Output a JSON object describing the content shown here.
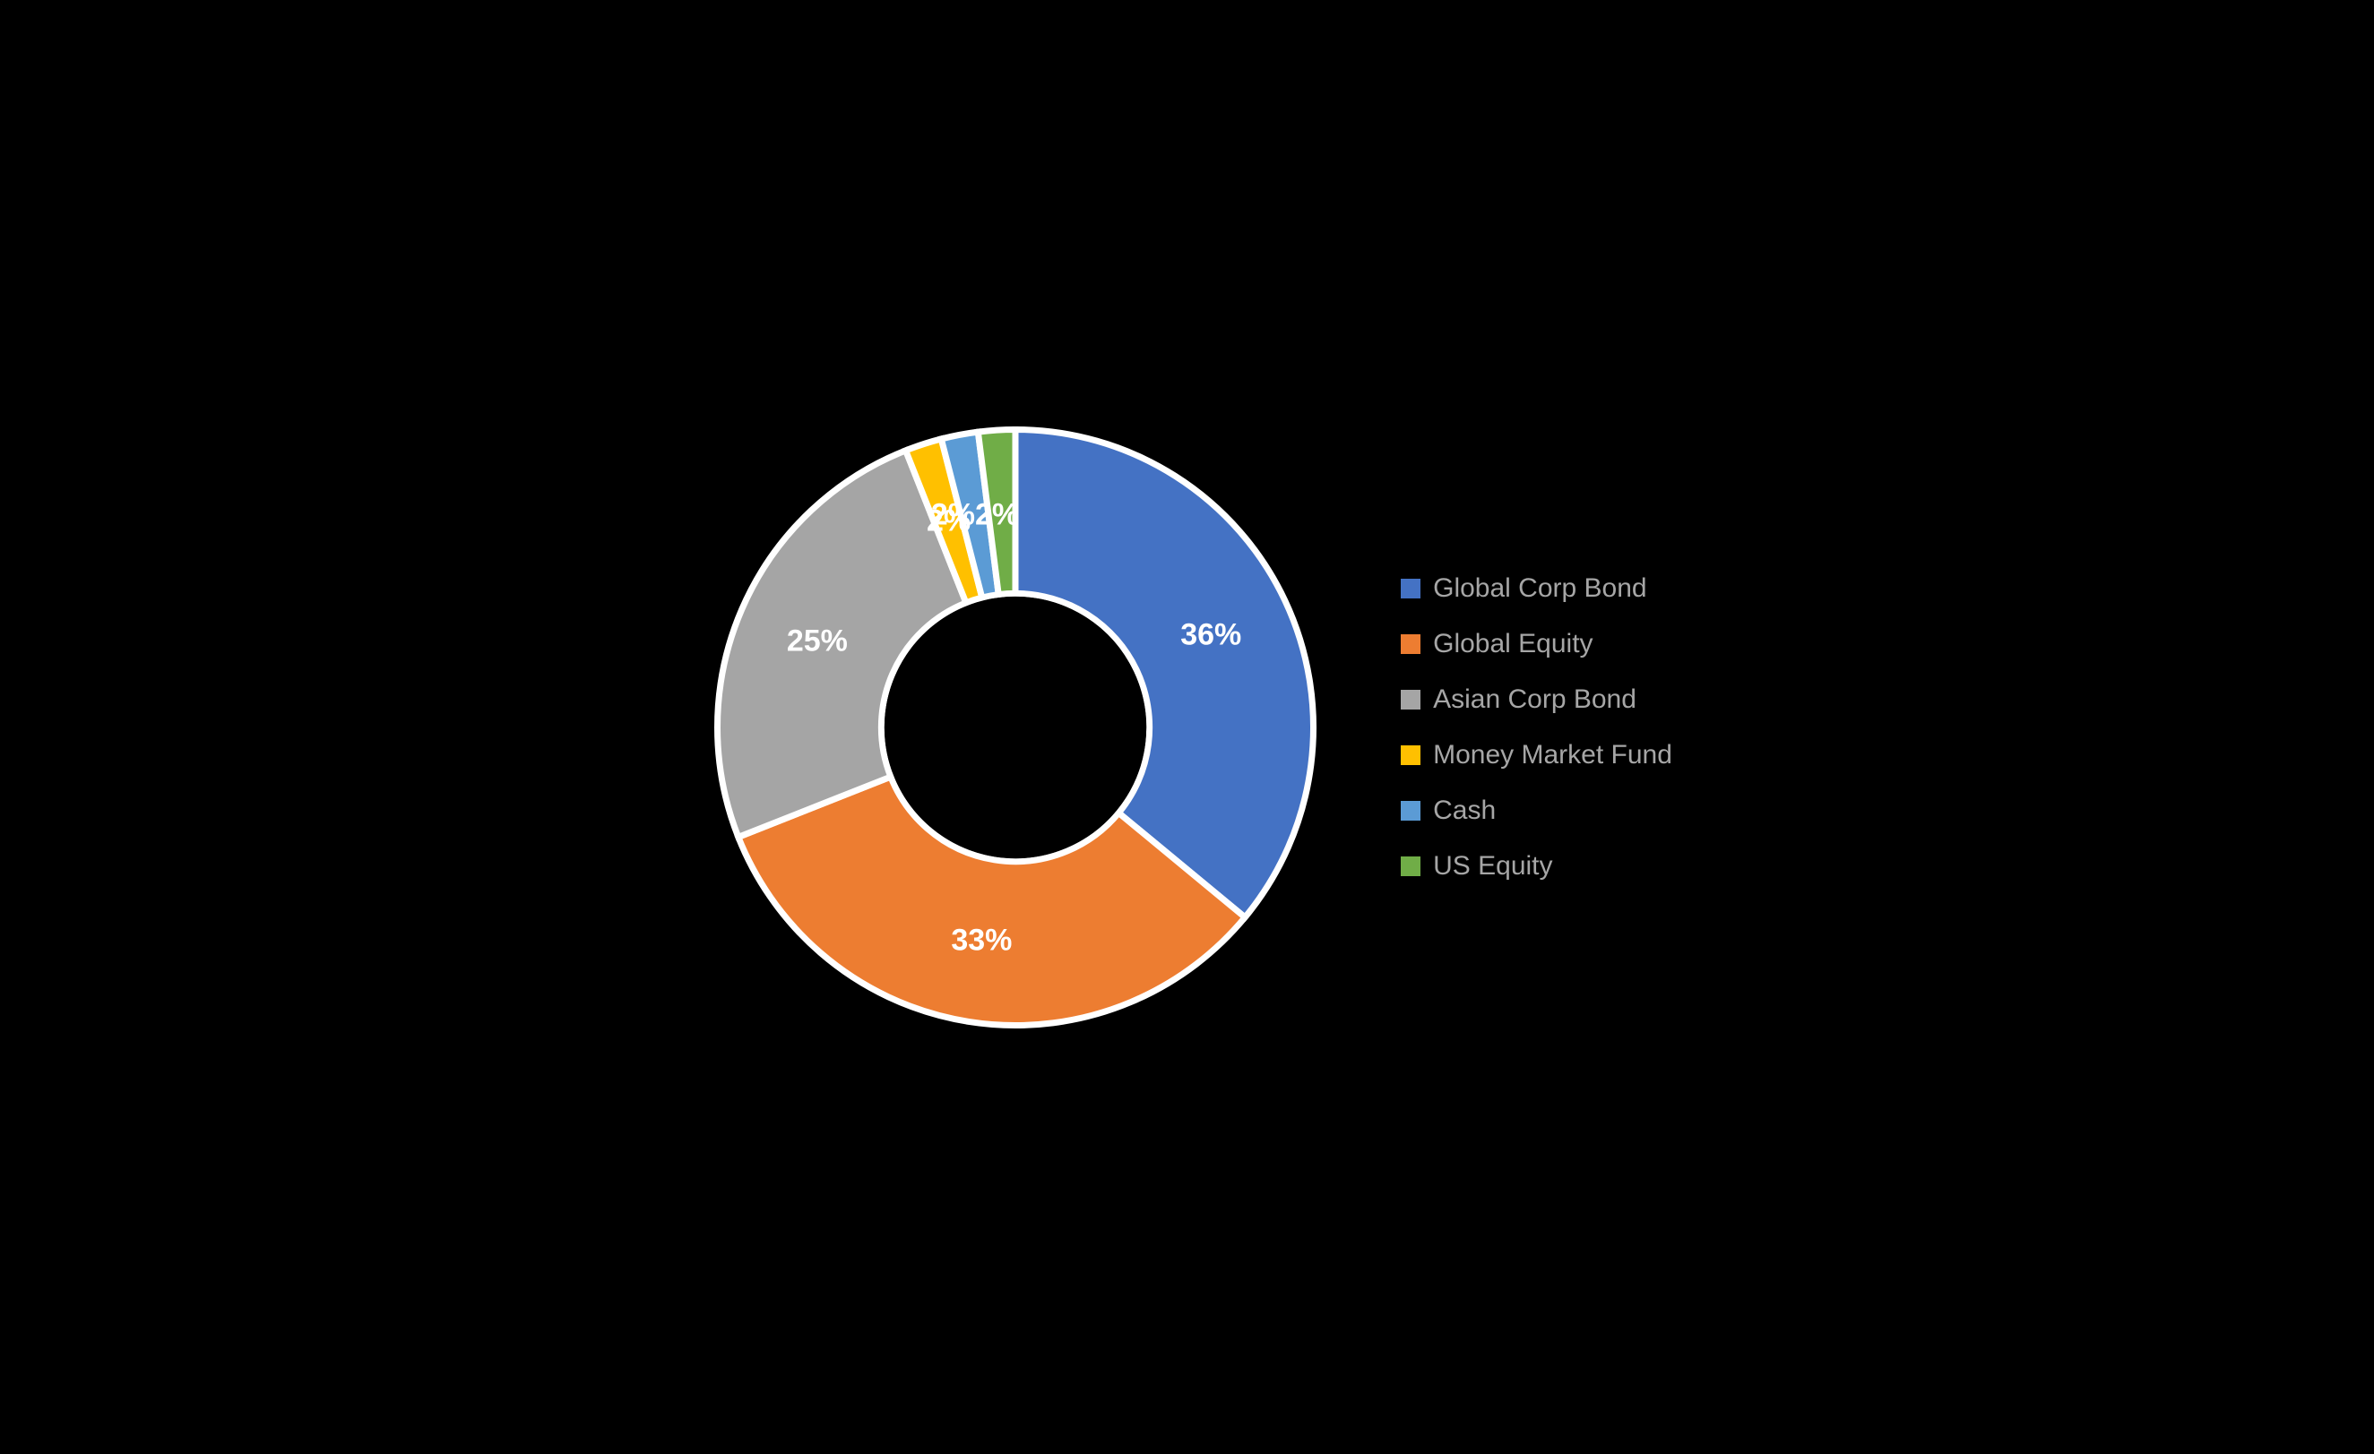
{
  "chart": {
    "type": "donut",
    "background_color": "#000000",
    "inner_radius_ratio": 0.45,
    "start_angle_deg": -90,
    "slice_stroke": "#ffffff",
    "slice_stroke_width": 2,
    "label_color": "#ffffff",
    "label_fontsize": 34,
    "label_fontweight": "bold",
    "series": [
      {
        "name": "Global Corp Bond",
        "value": 36,
        "label": "36%",
        "color": "#4472c4"
      },
      {
        "name": "Global Equity",
        "value": 33,
        "label": "33%",
        "color": "#ed7d31"
      },
      {
        "name": "Asian Corp Bond",
        "value": 25,
        "label": "25%",
        "color": "#a5a5a5"
      },
      {
        "name": "Money Market Fund",
        "value": 2,
        "label": "2%",
        "color": "#ffc000"
      },
      {
        "name": "Cash",
        "value": 2,
        "label": "2%2%",
        "color": "#5b9bd5"
      },
      {
        "name": "US Equity",
        "value": 2,
        "label": "",
        "color": "#70ad47"
      }
    ],
    "legend": {
      "position": "right",
      "text_color": "#a6a6a6",
      "fontsize": 30,
      "swatch_size": 22
    }
  }
}
